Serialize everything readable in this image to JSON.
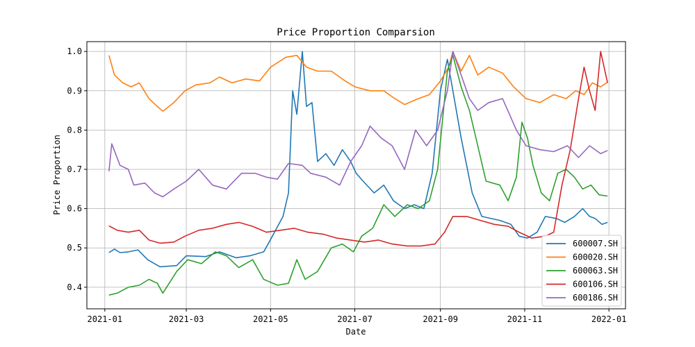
{
  "chart_data": {
    "type": "line",
    "title": "Price Proportion Comparsion",
    "xlabel": "Date",
    "ylabel": "Price Proportion",
    "xlim": [
      "2020-12-19",
      "2022-01-13"
    ],
    "ylim": [
      0.345,
      1.025
    ],
    "x_ticks": [
      "2021-01-01",
      "2021-03-01",
      "2021-05-01",
      "2021-07-01",
      "2021-09-01",
      "2021-11-01",
      "2022-01-01"
    ],
    "x_tick_labels": [
      "2021-01",
      "2021-03",
      "2021-05",
      "2021-07",
      "2021-09",
      "2021-11",
      "2022-01"
    ],
    "y_ticks": [
      0.4,
      0.5,
      0.6,
      0.7,
      0.8,
      0.9,
      1.0
    ],
    "y_tick_labels": [
      "0.4",
      "0.5",
      "0.6",
      "0.7",
      "0.8",
      "0.9",
      "1.0"
    ],
    "grid": true,
    "legend_position": "lower-right",
    "series": [
      {
        "name": "600007.SH",
        "color": "#1f77b4",
        "points": [
          [
            "2021-01-04",
            0.488
          ],
          [
            "2021-01-08",
            0.497
          ],
          [
            "2021-01-12",
            0.488
          ],
          [
            "2021-01-18",
            0.49
          ],
          [
            "2021-01-25",
            0.495
          ],
          [
            "2021-02-01",
            0.47
          ],
          [
            "2021-02-05",
            0.462
          ],
          [
            "2021-02-10",
            0.452
          ],
          [
            "2021-02-22",
            0.455
          ],
          [
            "2021-03-01",
            0.48
          ],
          [
            "2021-03-15",
            0.478
          ],
          [
            "2021-03-25",
            0.49
          ],
          [
            "2021-04-06",
            0.475
          ],
          [
            "2021-04-16",
            0.48
          ],
          [
            "2021-04-26",
            0.49
          ],
          [
            "2021-04-30",
            0.515
          ],
          [
            "2021-05-10",
            0.58
          ],
          [
            "2021-05-14",
            0.64
          ],
          [
            "2021-05-17",
            0.9
          ],
          [
            "2021-05-20",
            0.84
          ],
          [
            "2021-05-24",
            1.0
          ],
          [
            "2021-05-27",
            0.86
          ],
          [
            "2021-05-31",
            0.87
          ],
          [
            "2021-06-04",
            0.72
          ],
          [
            "2021-06-10",
            0.74
          ],
          [
            "2021-06-16",
            0.71
          ],
          [
            "2021-06-22",
            0.75
          ],
          [
            "2021-06-28",
            0.72
          ],
          [
            "2021-07-02",
            0.69
          ],
          [
            "2021-07-07",
            0.67
          ],
          [
            "2021-07-15",
            0.64
          ],
          [
            "2021-07-22",
            0.66
          ],
          [
            "2021-07-29",
            0.62
          ],
          [
            "2021-08-06",
            0.6
          ],
          [
            "2021-08-13",
            0.61
          ],
          [
            "2021-08-20",
            0.6
          ],
          [
            "2021-08-26",
            0.69
          ],
          [
            "2021-09-01",
            0.9
          ],
          [
            "2021-09-06",
            0.98
          ],
          [
            "2021-09-10",
            0.9
          ],
          [
            "2021-09-16",
            0.78
          ],
          [
            "2021-09-24",
            0.64
          ],
          [
            "2021-10-01",
            0.58
          ],
          [
            "2021-10-14",
            0.57
          ],
          [
            "2021-10-22",
            0.56
          ],
          [
            "2021-10-28",
            0.53
          ],
          [
            "2021-11-03",
            0.525
          ],
          [
            "2021-11-10",
            0.54
          ],
          [
            "2021-11-16",
            0.58
          ],
          [
            "2021-11-24",
            0.575
          ],
          [
            "2021-11-30",
            0.565
          ],
          [
            "2021-12-07",
            0.58
          ],
          [
            "2021-12-13",
            0.6
          ],
          [
            "2021-12-18",
            0.58
          ],
          [
            "2021-12-22",
            0.575
          ],
          [
            "2021-12-27",
            0.56
          ],
          [
            "2021-12-31",
            0.565
          ]
        ]
      },
      {
        "name": "600020.SH",
        "color": "#ff7f0e",
        "points": [
          [
            "2021-01-04",
            0.99
          ],
          [
            "2021-01-08",
            0.94
          ],
          [
            "2021-01-14",
            0.92
          ],
          [
            "2021-01-20",
            0.91
          ],
          [
            "2021-01-26",
            0.92
          ],
          [
            "2021-02-02",
            0.88
          ],
          [
            "2021-02-08",
            0.86
          ],
          [
            "2021-02-12",
            0.848
          ],
          [
            "2021-02-20",
            0.87
          ],
          [
            "2021-02-28",
            0.9
          ],
          [
            "2021-03-08",
            0.915
          ],
          [
            "2021-03-18",
            0.92
          ],
          [
            "2021-03-25",
            0.935
          ],
          [
            "2021-04-03",
            0.92
          ],
          [
            "2021-04-13",
            0.93
          ],
          [
            "2021-04-23",
            0.925
          ],
          [
            "2021-05-01",
            0.96
          ],
          [
            "2021-05-12",
            0.985
          ],
          [
            "2021-05-20",
            0.99
          ],
          [
            "2021-05-27",
            0.96
          ],
          [
            "2021-06-04",
            0.95
          ],
          [
            "2021-06-14",
            0.95
          ],
          [
            "2021-06-24",
            0.925
          ],
          [
            "2021-07-01",
            0.91
          ],
          [
            "2021-07-12",
            0.9
          ],
          [
            "2021-07-22",
            0.9
          ],
          [
            "2021-07-30",
            0.88
          ],
          [
            "2021-08-06",
            0.865
          ],
          [
            "2021-08-16",
            0.88
          ],
          [
            "2021-08-24",
            0.89
          ],
          [
            "2021-09-01",
            0.925
          ],
          [
            "2021-09-07",
            0.96
          ],
          [
            "2021-09-10",
            1.0
          ],
          [
            "2021-09-16",
            0.95
          ],
          [
            "2021-09-22",
            0.99
          ],
          [
            "2021-09-28",
            0.94
          ],
          [
            "2021-10-06",
            0.96
          ],
          [
            "2021-10-16",
            0.945
          ],
          [
            "2021-10-24",
            0.91
          ],
          [
            "2021-11-02",
            0.88
          ],
          [
            "2021-11-12",
            0.87
          ],
          [
            "2021-11-22",
            0.89
          ],
          [
            "2021-12-01",
            0.88
          ],
          [
            "2021-12-08",
            0.9
          ],
          [
            "2021-12-14",
            0.89
          ],
          [
            "2021-12-20",
            0.92
          ],
          [
            "2021-12-26",
            0.91
          ],
          [
            "2021-12-31",
            0.922
          ]
        ]
      },
      {
        "name": "600063.SH",
        "color": "#2ca02c",
        "points": [
          [
            "2021-01-04",
            0.38
          ],
          [
            "2021-01-10",
            0.385
          ],
          [
            "2021-01-18",
            0.4
          ],
          [
            "2021-01-26",
            0.405
          ],
          [
            "2021-02-02",
            0.42
          ],
          [
            "2021-02-08",
            0.41
          ],
          [
            "2021-02-12",
            0.385
          ],
          [
            "2021-02-22",
            0.44
          ],
          [
            "2021-03-02",
            0.47
          ],
          [
            "2021-03-12",
            0.46
          ],
          [
            "2021-03-22",
            0.49
          ],
          [
            "2021-03-30",
            0.48
          ],
          [
            "2021-04-08",
            0.45
          ],
          [
            "2021-04-18",
            0.47
          ],
          [
            "2021-04-26",
            0.42
          ],
          [
            "2021-05-06",
            0.405
          ],
          [
            "2021-05-14",
            0.41
          ],
          [
            "2021-05-20",
            0.47
          ],
          [
            "2021-05-26",
            0.42
          ],
          [
            "2021-06-04",
            0.44
          ],
          [
            "2021-06-14",
            0.5
          ],
          [
            "2021-06-22",
            0.51
          ],
          [
            "2021-06-30",
            0.49
          ],
          [
            "2021-07-06",
            0.53
          ],
          [
            "2021-07-14",
            0.55
          ],
          [
            "2021-07-22",
            0.61
          ],
          [
            "2021-07-30",
            0.58
          ],
          [
            "2021-08-08",
            0.61
          ],
          [
            "2021-08-16",
            0.6
          ],
          [
            "2021-08-24",
            0.62
          ],
          [
            "2021-08-30",
            0.7
          ],
          [
            "2021-09-06",
            0.95
          ],
          [
            "2021-09-10",
            0.99
          ],
          [
            "2021-09-16",
            0.91
          ],
          [
            "2021-09-22",
            0.85
          ],
          [
            "2021-09-28",
            0.76
          ],
          [
            "2021-10-04",
            0.67
          ],
          [
            "2021-10-14",
            0.66
          ],
          [
            "2021-10-20",
            0.62
          ],
          [
            "2021-10-26",
            0.68
          ],
          [
            "2021-10-30",
            0.82
          ],
          [
            "2021-11-03",
            0.78
          ],
          [
            "2021-11-07",
            0.71
          ],
          [
            "2021-11-13",
            0.64
          ],
          [
            "2021-11-19",
            0.62
          ],
          [
            "2021-11-25",
            0.69
          ],
          [
            "2021-12-01",
            0.7
          ],
          [
            "2021-12-07",
            0.68
          ],
          [
            "2021-12-13",
            0.65
          ],
          [
            "2021-12-19",
            0.66
          ],
          [
            "2021-12-25",
            0.635
          ],
          [
            "2021-12-31",
            0.632
          ]
        ]
      },
      {
        "name": "600106.SH",
        "color": "#d62728",
        "points": [
          [
            "2021-01-04",
            0.556
          ],
          [
            "2021-01-10",
            0.545
          ],
          [
            "2021-01-18",
            0.54
          ],
          [
            "2021-01-26",
            0.545
          ],
          [
            "2021-02-02",
            0.52
          ],
          [
            "2021-02-10",
            0.512
          ],
          [
            "2021-02-20",
            0.515
          ],
          [
            "2021-02-28",
            0.53
          ],
          [
            "2021-03-10",
            0.545
          ],
          [
            "2021-03-20",
            0.55
          ],
          [
            "2021-03-30",
            0.56
          ],
          [
            "2021-04-08",
            0.565
          ],
          [
            "2021-04-18",
            0.555
          ],
          [
            "2021-04-28",
            0.54
          ],
          [
            "2021-05-08",
            0.545
          ],
          [
            "2021-05-18",
            0.55
          ],
          [
            "2021-05-28",
            0.54
          ],
          [
            "2021-06-08",
            0.535
          ],
          [
            "2021-06-18",
            0.525
          ],
          [
            "2021-06-28",
            0.52
          ],
          [
            "2021-07-08",
            0.515
          ],
          [
            "2021-07-18",
            0.52
          ],
          [
            "2021-07-28",
            0.51
          ],
          [
            "2021-08-08",
            0.505
          ],
          [
            "2021-08-18",
            0.505
          ],
          [
            "2021-08-28",
            0.51
          ],
          [
            "2021-09-04",
            0.54
          ],
          [
            "2021-09-10",
            0.58
          ],
          [
            "2021-09-20",
            0.58
          ],
          [
            "2021-09-30",
            0.57
          ],
          [
            "2021-10-10",
            0.56
          ],
          [
            "2021-10-20",
            0.555
          ],
          [
            "2021-10-28",
            0.54
          ],
          [
            "2021-11-06",
            0.525
          ],
          [
            "2021-11-16",
            0.53
          ],
          [
            "2021-11-22",
            0.54
          ],
          [
            "2021-11-28",
            0.66
          ],
          [
            "2021-12-04",
            0.75
          ],
          [
            "2021-12-10",
            0.88
          ],
          [
            "2021-12-14",
            0.96
          ],
          [
            "2021-12-18",
            0.9
          ],
          [
            "2021-12-22",
            0.85
          ],
          [
            "2021-12-26",
            1.0
          ],
          [
            "2021-12-31",
            0.92
          ]
        ]
      },
      {
        "name": "600186.SH",
        "color": "#9467bd",
        "points": [
          [
            "2021-01-04",
            0.695
          ],
          [
            "2021-01-06",
            0.765
          ],
          [
            "2021-01-12",
            0.71
          ],
          [
            "2021-01-18",
            0.7
          ],
          [
            "2021-01-22",
            0.66
          ],
          [
            "2021-01-30",
            0.665
          ],
          [
            "2021-02-06",
            0.64
          ],
          [
            "2021-02-12",
            0.63
          ],
          [
            "2021-02-20",
            0.65
          ],
          [
            "2021-03-01",
            0.67
          ],
          [
            "2021-03-10",
            0.7
          ],
          [
            "2021-03-20",
            0.66
          ],
          [
            "2021-03-30",
            0.65
          ],
          [
            "2021-04-10",
            0.69
          ],
          [
            "2021-04-20",
            0.69
          ],
          [
            "2021-04-28",
            0.68
          ],
          [
            "2021-05-06",
            0.675
          ],
          [
            "2021-05-14",
            0.715
          ],
          [
            "2021-05-24",
            0.71
          ],
          [
            "2021-05-30",
            0.69
          ],
          [
            "2021-06-10",
            0.68
          ],
          [
            "2021-06-20",
            0.66
          ],
          [
            "2021-06-28",
            0.72
          ],
          [
            "2021-07-06",
            0.76
          ],
          [
            "2021-07-12",
            0.81
          ],
          [
            "2021-07-20",
            0.78
          ],
          [
            "2021-07-28",
            0.76
          ],
          [
            "2021-08-06",
            0.7
          ],
          [
            "2021-08-14",
            0.8
          ],
          [
            "2021-08-22",
            0.76
          ],
          [
            "2021-08-30",
            0.8
          ],
          [
            "2021-09-06",
            0.9
          ],
          [
            "2021-09-10",
            1.0
          ],
          [
            "2021-09-16",
            0.94
          ],
          [
            "2021-09-22",
            0.88
          ],
          [
            "2021-09-28",
            0.85
          ],
          [
            "2021-10-06",
            0.87
          ],
          [
            "2021-10-16",
            0.88
          ],
          [
            "2021-10-26",
            0.8
          ],
          [
            "2021-11-02",
            0.76
          ],
          [
            "2021-11-12",
            0.75
          ],
          [
            "2021-11-22",
            0.745
          ],
          [
            "2021-12-02",
            0.76
          ],
          [
            "2021-12-10",
            0.73
          ],
          [
            "2021-12-18",
            0.76
          ],
          [
            "2021-12-26",
            0.74
          ],
          [
            "2021-12-31",
            0.748
          ]
        ]
      }
    ]
  }
}
